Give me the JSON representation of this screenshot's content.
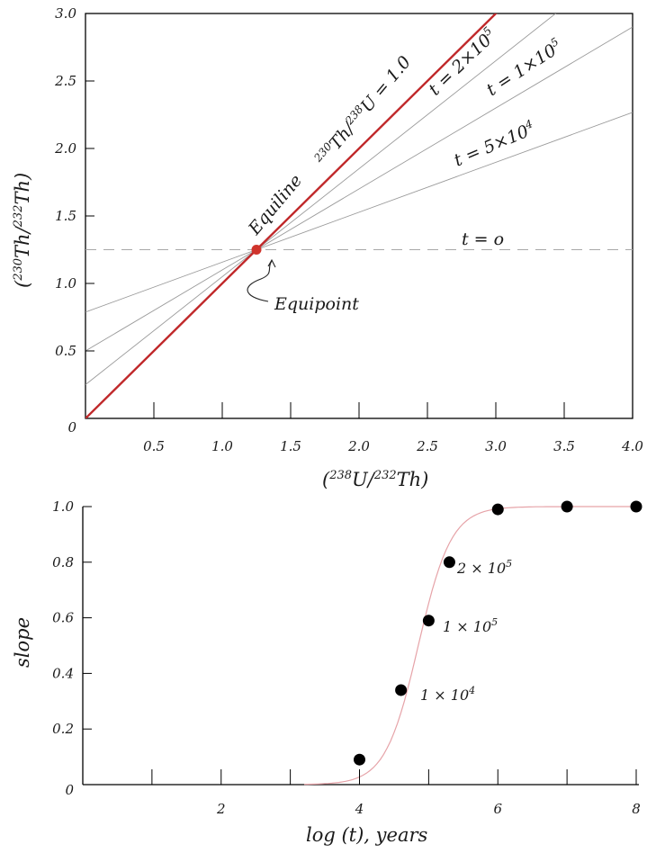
{
  "colors": {
    "equiline": "#c0282a",
    "equipoint": "#d0342c",
    "isochron": "#9a9a9a",
    "dashed": "#a8a8a8",
    "sigmoid": "#e6a3a8",
    "points": "#000000",
    "axes": "#000000"
  },
  "chart_data": [
    {
      "type": "line",
      "xlabel_parts": [
        "(",
        "238",
        "U/",
        "232",
        "Th)"
      ],
      "ylabel_parts": [
        "(",
        "230",
        "Th/",
        "232",
        "Th)"
      ],
      "xlim": [
        0,
        4.0
      ],
      "ylim": [
        0,
        3.0
      ],
      "x_ticks": [
        0.5,
        1.0,
        1.5,
        2.0,
        2.5,
        3.0,
        3.5,
        4.0
      ],
      "x_tick_labels": [
        "0.5",
        "1.0",
        "1.5",
        "2.0",
        "2.5",
        "3.0",
        "3.5",
        "4.0"
      ],
      "y_ticks": [
        0,
        0.5,
        1.0,
        1.5,
        2.0,
        2.5,
        3.0
      ],
      "y_tick_labels": [
        "0",
        "0.5",
        "1.0",
        "1.5",
        "2.0",
        "2.5",
        "3.0"
      ],
      "grid": false,
      "equipoint": {
        "x": 1.25,
        "y": 1.25,
        "label": "Equipoint"
      },
      "series": [
        {
          "name": "t = 0",
          "kind": "dashed",
          "slope": 0.0
        },
        {
          "name": "t = 5×10⁴",
          "kind": "isochron",
          "slope": 0.37
        },
        {
          "name": "t = 1×10⁵",
          "kind": "isochron",
          "slope": 0.6
        },
        {
          "name": "t = 2×10⁵",
          "kind": "isochron",
          "slope": 0.8
        },
        {
          "name": "230Th/238U = 1.0",
          "kind": "equiline",
          "slope": 1.0
        }
      ],
      "labels": {
        "equiline_word": "Equiline",
        "equiline_ratio_parts": [
          "230",
          "Th/",
          "238",
          "U = 1.0"
        ],
        "t0": "t = o",
        "t5e4_base": "t = 5×10",
        "t5e4_exp": "4",
        "t1e5_base": "t = 1×10",
        "t1e5_exp": "5",
        "t2e5_base": "t = 2×10",
        "t2e5_exp": "5"
      }
    },
    {
      "type": "scatter",
      "xlabel": "log (t), years",
      "ylabel": "slope",
      "xlim": [
        0,
        8
      ],
      "ylim": [
        0,
        1.0
      ],
      "x_ticks": [
        1,
        2,
        3,
        4,
        5,
        6,
        7,
        8
      ],
      "x_tick_labels": [
        "",
        "2",
        "",
        "4",
        "",
        "6",
        "",
        "8"
      ],
      "y_ticks": [
        0,
        0.2,
        0.4,
        0.6,
        0.8,
        1.0
      ],
      "y_tick_labels": [
        "0",
        "0.2",
        "0.4",
        "0.6",
        "0.8",
        "1.0"
      ],
      "grid": false,
      "points": [
        {
          "x": 4.0,
          "y": 0.09
        },
        {
          "x": 4.6,
          "y": 0.34
        },
        {
          "x": 5.0,
          "y": 0.59
        },
        {
          "x": 5.3,
          "y": 0.8
        },
        {
          "x": 6.0,
          "y": 0.99
        },
        {
          "x": 7.0,
          "y": 1.0
        },
        {
          "x": 8.0,
          "y": 1.0
        }
      ],
      "point_labels": [
        {
          "base": "1 × 10",
          "exp": "4"
        },
        {
          "base": "1 × 10",
          "exp": "5"
        },
        {
          "base": "2 × 10",
          "exp": "5"
        }
      ],
      "curve": {
        "kind": "logistic",
        "x0": 4.85,
        "k": 4.2,
        "xstart": 3.2
      }
    }
  ]
}
